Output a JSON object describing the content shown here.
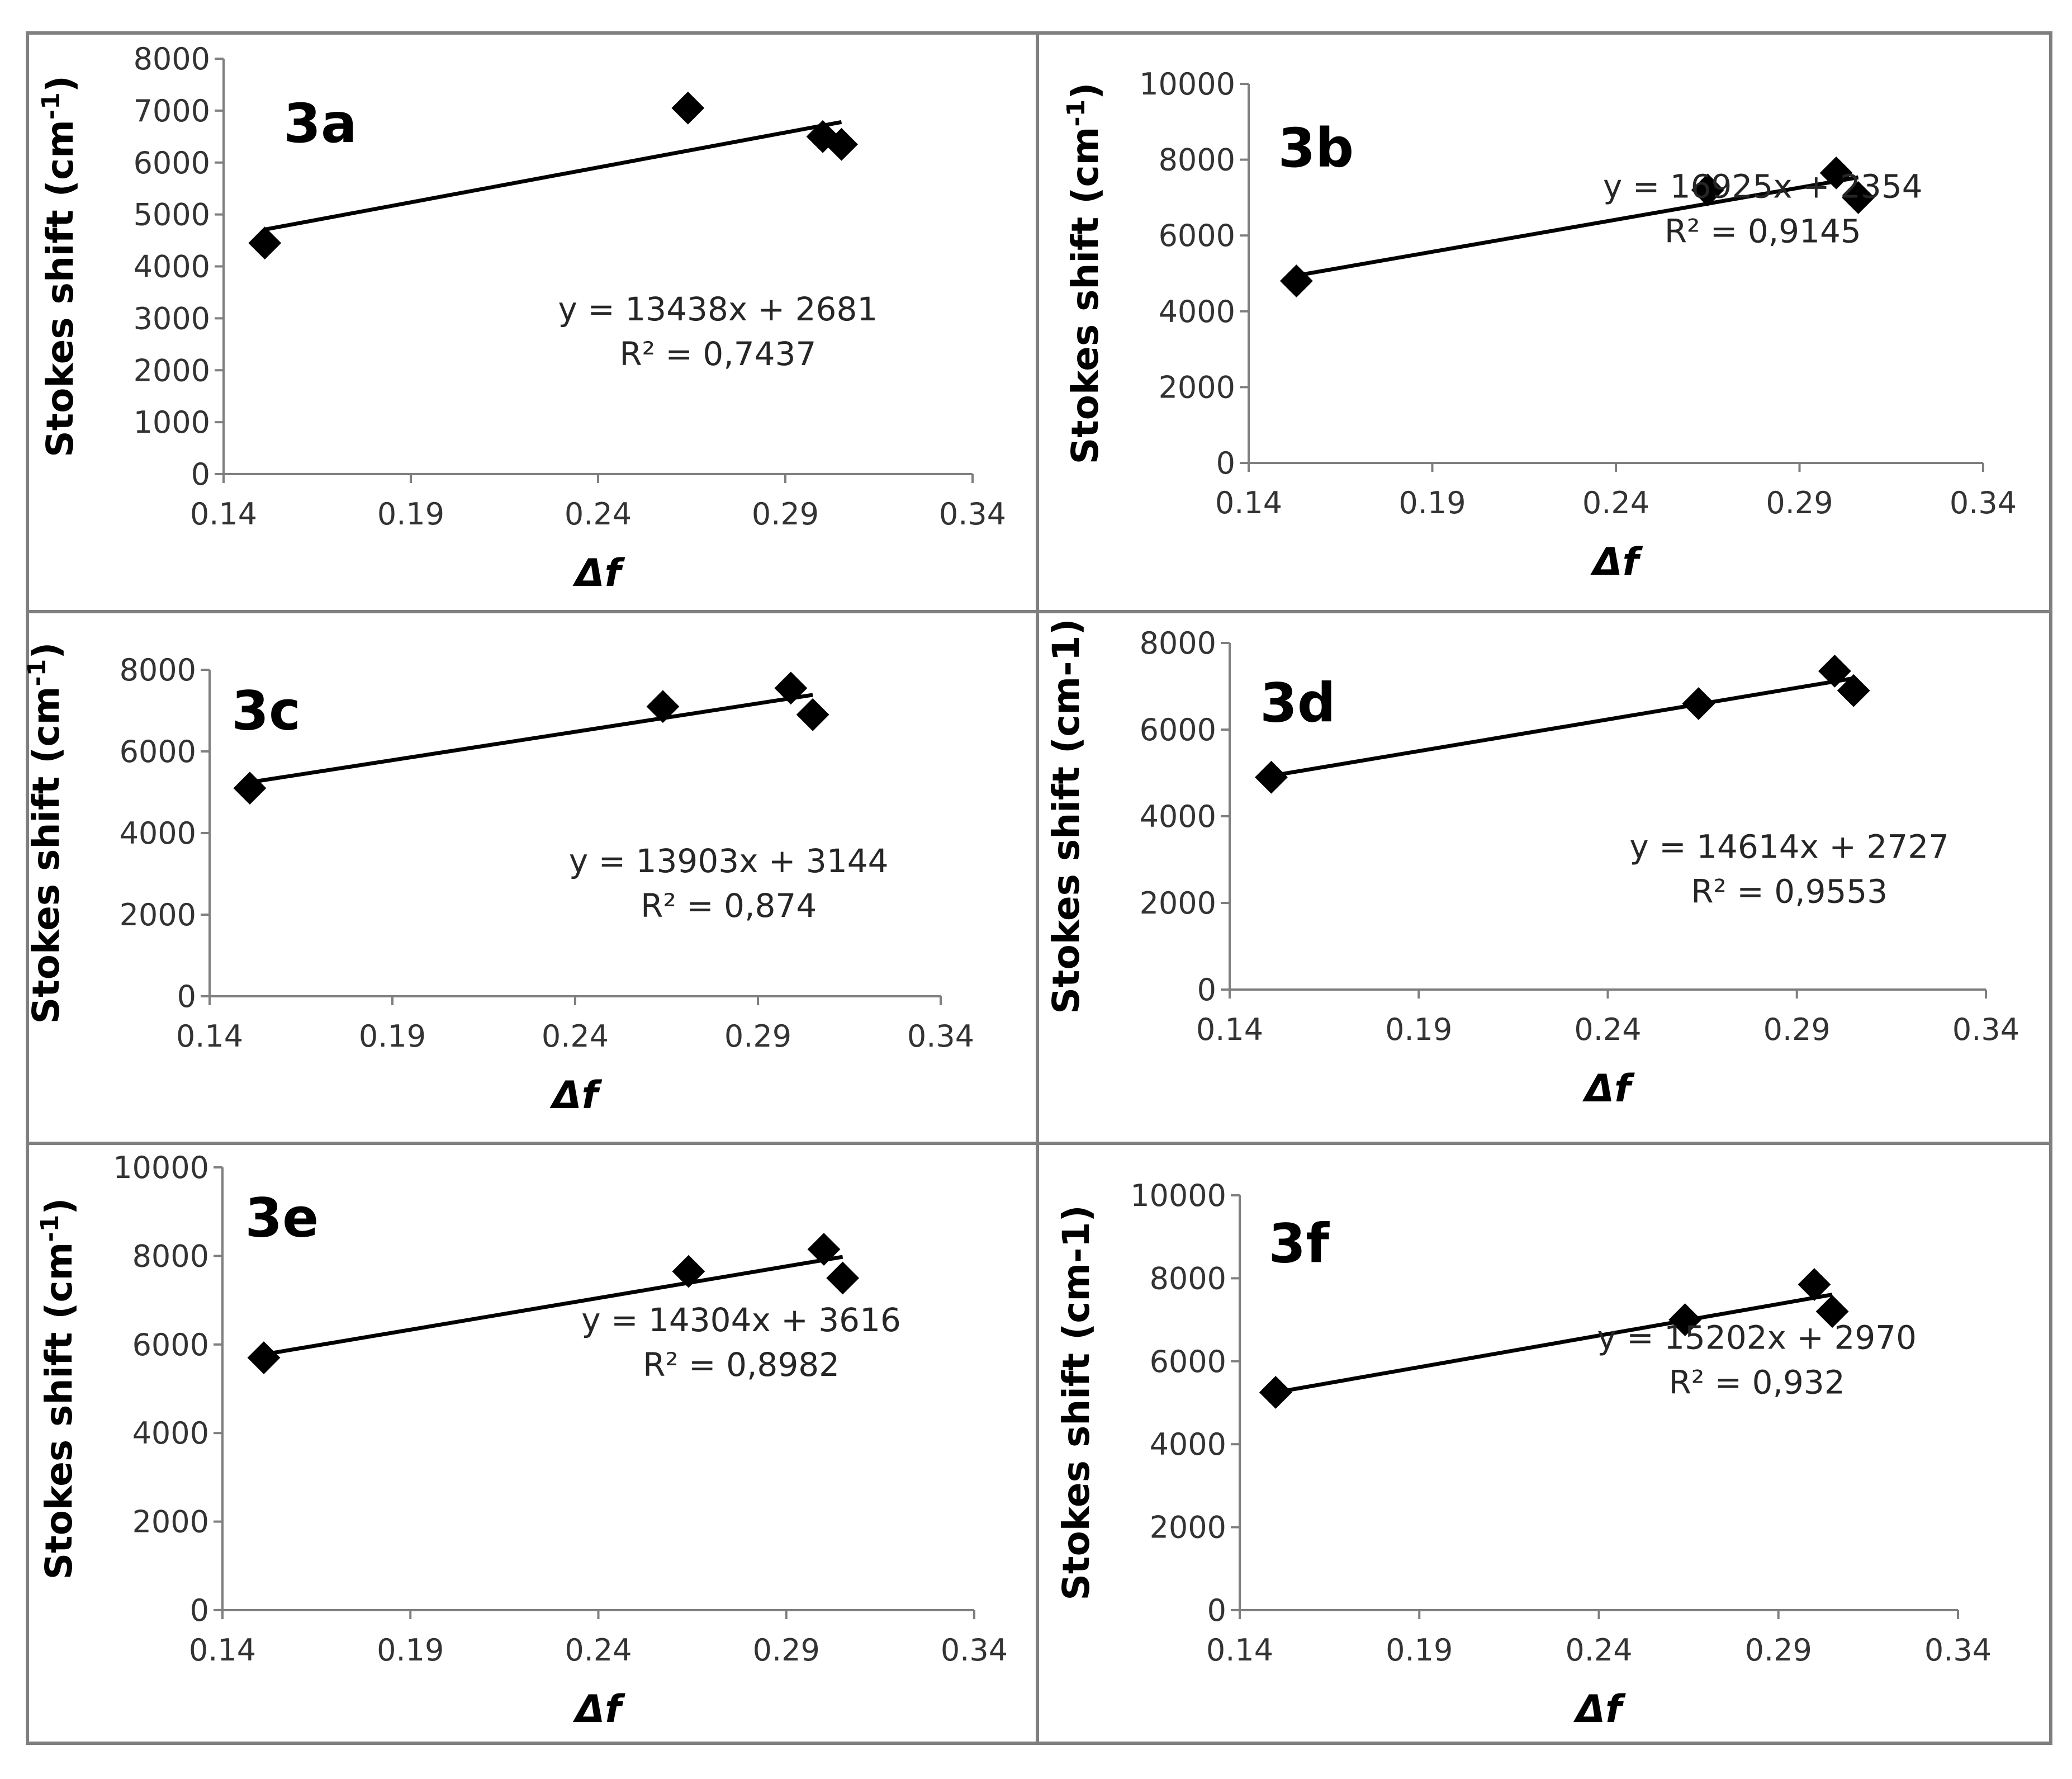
{
  "figure": {
    "x_label": "Δf",
    "series_color": "#000000"
  },
  "chart_data": [
    {
      "id": "3a",
      "type": "scatter",
      "panel_label": "3a",
      "xlabel": "Δf",
      "ylabel": "Stokes shift (cm",
      "ylabel_unit": "-1",
      "ylabel_close": ")",
      "xlim": [
        0.14,
        0.34
      ],
      "ylim": [
        0,
        8000
      ],
      "xticks": [
        0.14,
        0.19,
        0.24,
        0.29,
        0.34
      ],
      "xtick_labels": [
        "0.14",
        "0.19",
        "0.24",
        "0.29",
        "0.34"
      ],
      "yticks": [
        0,
        1000,
        2000,
        3000,
        4000,
        5000,
        6000,
        7000,
        8000
      ],
      "ytick_labels": [
        "0",
        "1000",
        "2000",
        "3000",
        "4000",
        "5000",
        "6000",
        "7000",
        "8000"
      ],
      "x": [
        0.151,
        0.264,
        0.3,
        0.305
      ],
      "y": [
        4450,
        7050,
        6500,
        6350
      ],
      "trendline": {
        "slope": 13438,
        "intercept": 2681
      },
      "equation": "y = 13438x + 2681",
      "r2_label": "R² = 0,7437"
    },
    {
      "id": "3b",
      "type": "scatter",
      "panel_label": "3b",
      "xlabel": "Δf",
      "ylabel": "Stokes shift (cm",
      "ylabel_unit": "-1",
      "ylabel_close": ")",
      "xlim": [
        0.14,
        0.34
      ],
      "ylim": [
        0,
        10000
      ],
      "xticks": [
        0.14,
        0.19,
        0.24,
        0.29,
        0.34
      ],
      "xtick_labels": [
        "0.14",
        "0.19",
        "0.24",
        "0.29",
        "0.34"
      ],
      "yticks": [
        0,
        2000,
        4000,
        6000,
        8000,
        10000
      ],
      "ytick_labels": [
        "0",
        "2000",
        "4000",
        "6000",
        "8000",
        "10000"
      ],
      "x": [
        0.153,
        0.265,
        0.3,
        0.306
      ],
      "y": [
        4800,
        7200,
        7650,
        7000
      ],
      "trendline": {
        "slope": 16925,
        "intercept": 2354
      },
      "equation": "y = 16925x + 2354",
      "r2_label": "R² = 0,9145"
    },
    {
      "id": "3c",
      "type": "scatter",
      "panel_label": "3c",
      "xlabel": "Δf",
      "ylabel": "Stokes shift (cm",
      "ylabel_unit": "-1",
      "ylabel_close": ")",
      "xlim": [
        0.14,
        0.34
      ],
      "ylim": [
        0,
        8000
      ],
      "xticks": [
        0.14,
        0.19,
        0.24,
        0.29,
        0.34
      ],
      "xtick_labels": [
        "0.14",
        "0.19",
        "0.24",
        "0.29",
        "0.34"
      ],
      "yticks": [
        0,
        2000,
        4000,
        6000,
        8000
      ],
      "ytick_labels": [
        "0",
        "2000",
        "4000",
        "6000",
        "8000"
      ],
      "x": [
        0.151,
        0.264,
        0.299,
        0.305
      ],
      "y": [
        5100,
        7100,
        7550,
        6900
      ],
      "trendline": {
        "slope": 13903,
        "intercept": 3144
      },
      "equation": "y = 13903x + 3144",
      "r2_label": "R² = 0,874"
    },
    {
      "id": "3d",
      "type": "scatter",
      "panel_label": "3d",
      "xlabel": "Δf",
      "ylabel": "Stokes shift (cm-1)",
      "ylabel_unit": "",
      "ylabel_close": "",
      "xlim": [
        0.14,
        0.34
      ],
      "ylim": [
        0,
        8000
      ],
      "xticks": [
        0.14,
        0.19,
        0.24,
        0.29,
        0.34
      ],
      "xtick_labels": [
        "0.14",
        "0.19",
        "0.24",
        "0.29",
        "0.34"
      ],
      "yticks": [
        0,
        2000,
        4000,
        6000,
        8000
      ],
      "ytick_labels": [
        "0",
        "2000",
        "4000",
        "6000",
        "8000"
      ],
      "x": [
        0.151,
        0.264,
        0.3,
        0.305
      ],
      "y": [
        4900,
        6600,
        7350,
        6900
      ],
      "trendline": {
        "slope": 14614,
        "intercept": 2727
      },
      "equation": "y = 14614x + 2727",
      "r2_label": "R² = 0,9553"
    },
    {
      "id": "3e",
      "type": "scatter",
      "panel_label": "3e",
      "xlabel": "Δf",
      "ylabel": "Stokes shift (cm",
      "ylabel_unit": "-1",
      "ylabel_close": ")",
      "xlim": [
        0.14,
        0.34
      ],
      "ylim": [
        0,
        10000
      ],
      "xticks": [
        0.14,
        0.19,
        0.24,
        0.29,
        0.34
      ],
      "xtick_labels": [
        "0.14",
        "0.19",
        "0.24",
        "0.29",
        "0.34"
      ],
      "yticks": [
        0,
        2000,
        4000,
        6000,
        8000,
        10000
      ],
      "ytick_labels": [
        "0",
        "2000",
        "4000",
        "6000",
        "8000",
        "10000"
      ],
      "x": [
        0.151,
        0.264,
        0.3,
        0.305
      ],
      "y": [
        5700,
        7650,
        8150,
        7500
      ],
      "trendline": {
        "slope": 14304,
        "intercept": 3616
      },
      "equation": "y = 14304x + 3616",
      "r2_label": "R² = 0,8982"
    },
    {
      "id": "3f",
      "type": "scatter",
      "panel_label": "3f",
      "xlabel": "Δf",
      "ylabel": "Stokes shift (cm-1)",
      "ylabel_unit": "",
      "ylabel_close": "",
      "xlim": [
        0.14,
        0.34
      ],
      "ylim": [
        0,
        10000
      ],
      "xticks": [
        0.14,
        0.19,
        0.24,
        0.29,
        0.34
      ],
      "xtick_labels": [
        "0.14",
        "0.19",
        "0.24",
        "0.29",
        "0.34"
      ],
      "yticks": [
        0,
        2000,
        4000,
        6000,
        8000,
        10000
      ],
      "ytick_labels": [
        "0",
        "2000",
        "4000",
        "6000",
        "8000",
        "10000"
      ],
      "x": [
        0.15,
        0.264,
        0.3,
        0.305
      ],
      "y": [
        5250,
        7000,
        7850,
        7200
      ],
      "trendline": {
        "slope": 15202,
        "intercept": 2970
      },
      "equation": "y = 15202x + 2970",
      "r2_label": "R² = 0,932"
    }
  ]
}
